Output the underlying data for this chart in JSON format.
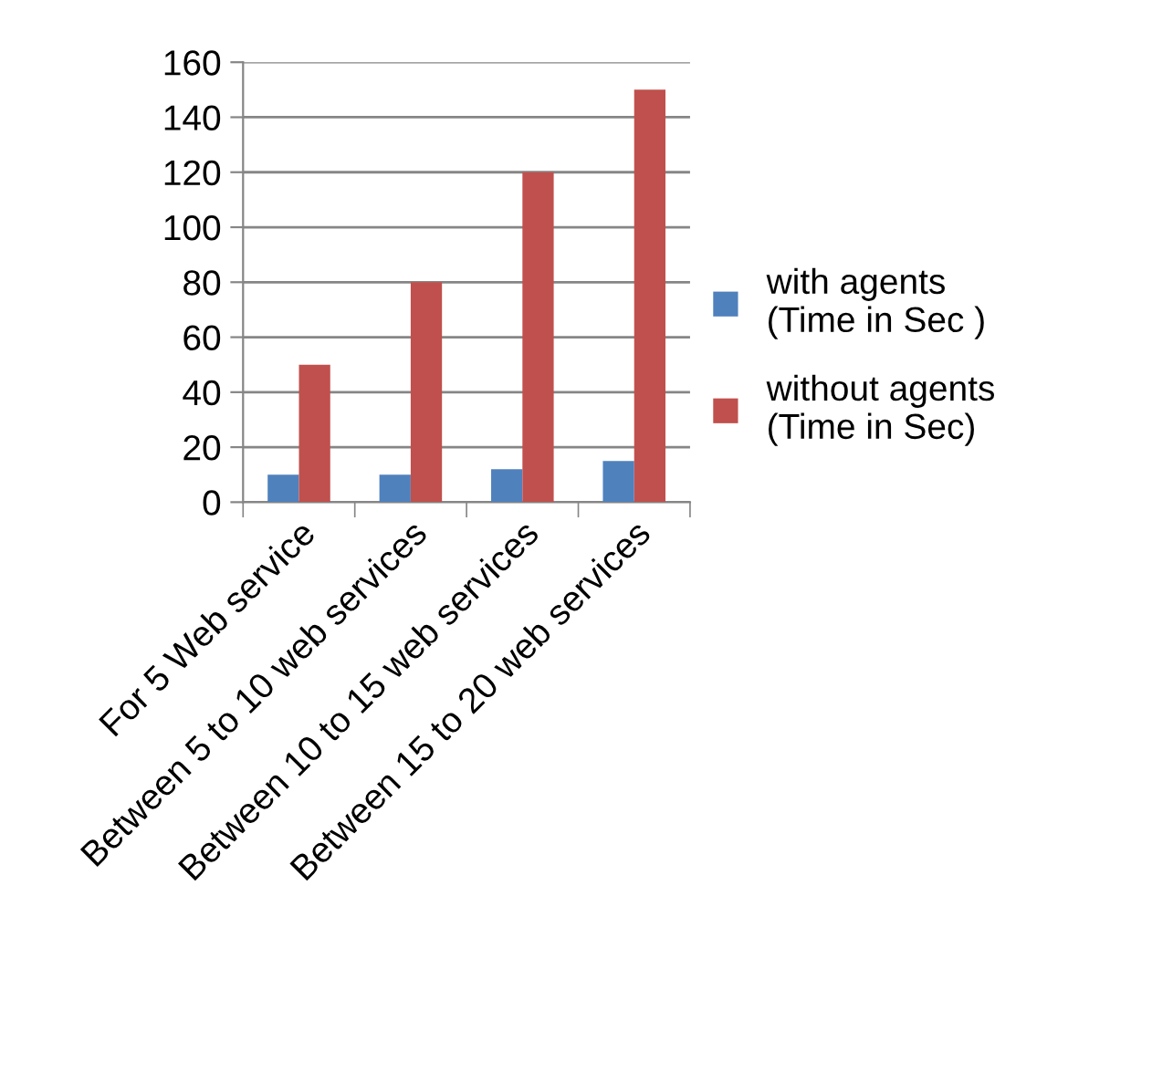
{
  "chart_data": {
    "type": "bar",
    "categories": [
      "For 5 Web service",
      "Between 5 to 10 web services",
      "Between 10 to 15 web services",
      "Between 15 to 20 web services"
    ],
    "series": [
      {
        "name": "with agents\n(Time in Sec )",
        "color": "#4f81bd",
        "values": [
          10,
          10,
          12,
          15
        ]
      },
      {
        "name": "without agents\n(Time in Sec)",
        "color": "#c0504d",
        "values": [
          50,
          80,
          120,
          150
        ]
      }
    ],
    "ylim": [
      0,
      160
    ],
    "yticks": [
      0,
      20,
      40,
      60,
      80,
      100,
      120,
      140,
      160
    ],
    "grid": "y",
    "legend": "right"
  }
}
